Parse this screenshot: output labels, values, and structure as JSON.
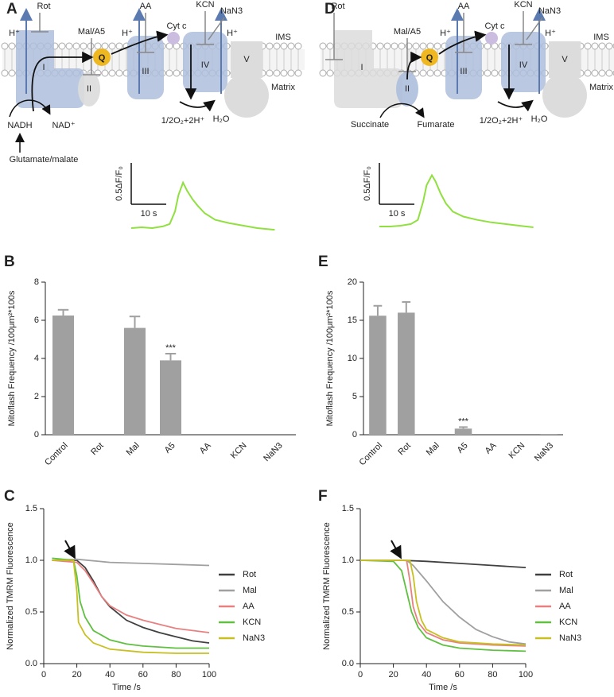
{
  "diagrams": [
    {
      "panel": "A",
      "rot": "Rot",
      "mal_a5": "Mal/A5",
      "aa": "AA",
      "kcn": "KCN",
      "nan3": "NaN3",
      "h_plus": [
        "H⁺",
        "H⁺",
        "H⁺"
      ],
      "complexes": [
        "I",
        "II",
        "III",
        "IV",
        "V"
      ],
      "q": "Q",
      "cyt_c": "Cyt c",
      "ims": "IMS",
      "matrix": "Matrix",
      "o2": "1/2O₂+2H⁺",
      "h2o": "H₂O",
      "substrate": "NADH",
      "product": "NAD⁺",
      "source": "Glutamate/malate"
    },
    {
      "panel": "D",
      "rot": "Rot",
      "mal_a5": "Mal/A5",
      "aa": "AA",
      "kcn": "KCN",
      "nan3": "NaN3",
      "h_plus": [
        "H⁺",
        "H⁺"
      ],
      "complexes": [
        "I",
        "II",
        "III",
        "IV",
        "V"
      ],
      "q": "Q",
      "cyt_c": "Cyt c",
      "ims": "IMS",
      "matrix": "Matrix",
      "o2": "1/2O₂+2H⁺",
      "h2o": "H₂O",
      "substrate": "Succinate",
      "product": "Fumarate"
    }
  ],
  "chart_data": [
    {
      "type": "trace",
      "color": "#90e040",
      "scalebar": {
        "x": 10,
        "xlabel": "10 s",
        "y": 0.5,
        "ylabel": "0.5ΔF/F₀"
      },
      "x": [
        0,
        3,
        6,
        9,
        11,
        12.5,
        13.5,
        14.8,
        16,
        17.5,
        19,
        21,
        24,
        28,
        32,
        36,
        41
      ],
      "values": [
        0,
        0.01,
        0,
        0.02,
        0.05,
        0.2,
        0.4,
        0.55,
        0.45,
        0.35,
        0.27,
        0.18,
        0.1,
        0.06,
        0.03,
        0,
        -0.02
      ]
    },
    {
      "type": "bar",
      "panel": "B",
      "ylabel": "Mitoflash Frequency /100μm²*100s",
      "color": "#a0a0a0",
      "categories": [
        "Control",
        "Rot",
        "Mal",
        "A5",
        "AA",
        "KCN",
        "NaN3"
      ],
      "values": [
        6.25,
        0,
        5.6,
        3.9,
        0,
        0,
        0
      ],
      "errors": [
        0.3,
        0,
        0.6,
        0.35,
        0,
        0,
        0
      ],
      "annotation": {
        "text": "***",
        "category": "A5"
      },
      "ylim": [
        0,
        8
      ],
      "yticks": [
        0,
        2,
        4,
        6,
        8
      ]
    },
    {
      "type": "line",
      "panel": "C",
      "xlabel": "Time /s",
      "ylabel": "Normalized TMRM Fluorescence",
      "xlim": [
        0,
        100
      ],
      "xticks": [
        0,
        20,
        40,
        60,
        80,
        100
      ],
      "ylim": [
        0,
        1.5
      ],
      "yticks": [
        {
          "value": 0,
          "label": "0.0"
        },
        0.5,
        {
          "value": 1,
          "label": "1.0"
        },
        1.5
      ],
      "series": [
        {
          "name": "Rot",
          "color": "#404040",
          "x": [
            5,
            20,
            25,
            30,
            35,
            40,
            50,
            60,
            70,
            80,
            90,
            100
          ],
          "values": [
            1.0,
            1.0,
            0.93,
            0.8,
            0.65,
            0.55,
            0.42,
            0.35,
            0.3,
            0.26,
            0.22,
            0.2
          ]
        },
        {
          "name": "Mal",
          "color": "#a0a0a0",
          "x": [
            5,
            20,
            40,
            60,
            80,
            100
          ],
          "values": [
            1.0,
            1.01,
            0.98,
            0.97,
            0.96,
            0.95
          ]
        },
        {
          "name": "AA",
          "color": "#e88080",
          "x": [
            5,
            20,
            25,
            30,
            35,
            40,
            50,
            60,
            70,
            80,
            90,
            100
          ],
          "values": [
            1.0,
            0.98,
            0.9,
            0.78,
            0.65,
            0.56,
            0.47,
            0.42,
            0.38,
            0.34,
            0.32,
            0.3
          ]
        },
        {
          "name": "KCN",
          "color": "#60c040",
          "x": [
            5,
            18,
            20,
            22,
            25,
            30,
            40,
            50,
            60,
            80,
            100
          ],
          "values": [
            1.02,
            1.0,
            0.85,
            0.6,
            0.45,
            0.32,
            0.23,
            0.19,
            0.17,
            0.15,
            0.15
          ]
        },
        {
          "name": "NaN3",
          "color": "#c8c020",
          "x": [
            5,
            18,
            20,
            21,
            25,
            30,
            40,
            60,
            80,
            100
          ],
          "values": [
            1.0,
            1.0,
            0.7,
            0.4,
            0.28,
            0.2,
            0.14,
            0.11,
            0.1,
            0.1
          ]
        }
      ]
    },
    {
      "type": "trace",
      "color": "#90e040",
      "scalebar": {
        "x": 10,
        "xlabel": "10 s",
        "y": 0.5,
        "ylabel": "0.5ΔF/F₀"
      },
      "x": [
        0,
        3,
        6,
        9,
        11,
        12.5,
        13.5,
        15,
        16,
        17.5,
        19,
        21,
        24,
        28,
        32,
        36,
        40,
        44
      ],
      "values": [
        0,
        0,
        0.01,
        0.03,
        0.08,
        0.3,
        0.5,
        0.62,
        0.55,
        0.4,
        0.28,
        0.18,
        0.12,
        0.08,
        0.05,
        0.03,
        0.01,
        -0.01
      ]
    },
    {
      "type": "bar",
      "panel": "E",
      "ylabel": "Mitoflash Frequency /100μm²*100s",
      "color": "#a0a0a0",
      "categories": [
        "Control",
        "Rot",
        "Mal",
        "A5",
        "AA",
        "KCN",
        "NaN3"
      ],
      "values": [
        15.6,
        16.0,
        0,
        0.8,
        0,
        0,
        0.1
      ],
      "errors": [
        1.3,
        1.4,
        0,
        0.2,
        0,
        0,
        0
      ],
      "annotation": {
        "text": "***",
        "category": "A5"
      },
      "ylim": [
        0,
        20
      ],
      "yticks": [
        0,
        5,
        10,
        15,
        20
      ]
    },
    {
      "type": "line",
      "panel": "F",
      "xlabel": "Time /s",
      "ylabel": "Normalized TMRM Fluorescence",
      "xlim": [
        0,
        100
      ],
      "xticks": [
        0,
        20,
        40,
        60,
        80,
        100
      ],
      "ylim": [
        0,
        1.5
      ],
      "yticks": [
        {
          "value": 0,
          "label": "0.0"
        },
        0.5,
        {
          "value": 1,
          "label": "1.0"
        },
        1.5
      ],
      "series": [
        {
          "name": "Rot",
          "color": "#404040",
          "x": [
            0,
            25,
            40,
            60,
            80,
            100
          ],
          "values": [
            1.0,
            1.0,
            0.99,
            0.97,
            0.95,
            0.93
          ]
        },
        {
          "name": "Mal",
          "color": "#a0a0a0",
          "x": [
            0,
            28,
            32,
            40,
            50,
            60,
            70,
            80,
            90,
            100
          ],
          "values": [
            1.0,
            1.0,
            0.95,
            0.8,
            0.6,
            0.45,
            0.33,
            0.26,
            0.21,
            0.19
          ]
        },
        {
          "name": "AA",
          "color": "#e88080",
          "x": [
            0,
            28,
            30,
            32,
            35,
            40,
            50,
            60,
            80,
            100
          ],
          "values": [
            1.0,
            1.0,
            0.8,
            0.55,
            0.4,
            0.3,
            0.23,
            0.2,
            0.18,
            0.17
          ]
        },
        {
          "name": "KCN",
          "color": "#60c040",
          "x": [
            0,
            20,
            25,
            28,
            31,
            35,
            40,
            50,
            60,
            80,
            100
          ],
          "values": [
            1.0,
            0.99,
            0.9,
            0.7,
            0.5,
            0.35,
            0.25,
            0.18,
            0.15,
            0.13,
            0.12
          ]
        },
        {
          "name": "NaN3",
          "color": "#c8c020",
          "x": [
            0,
            30,
            32,
            34,
            37,
            40,
            50,
            60,
            80,
            100
          ],
          "values": [
            1.0,
            1.0,
            0.85,
            0.6,
            0.42,
            0.33,
            0.25,
            0.21,
            0.19,
            0.18
          ]
        }
      ]
    }
  ]
}
